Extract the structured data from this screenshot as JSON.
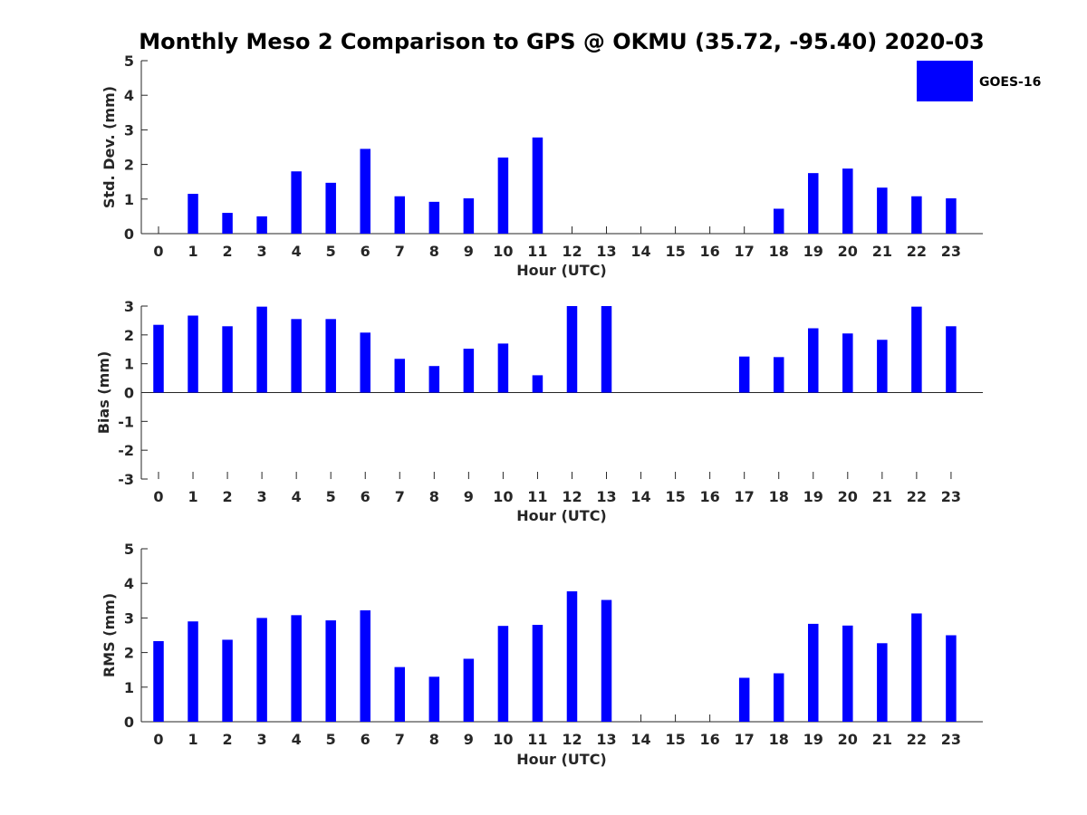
{
  "title": "Monthly Meso 2 Comparison to GPS @ OKMU (35.72, -95.40) 2020-03",
  "colors": {
    "bar": "#0000ff"
  },
  "chart_data": [
    {
      "type": "bar",
      "categories": [
        "0",
        "1",
        "2",
        "3",
        "4",
        "5",
        "6",
        "7",
        "8",
        "9",
        "10",
        "11",
        "12",
        "13",
        "14",
        "15",
        "16",
        "17",
        "18",
        "19",
        "20",
        "21",
        "22",
        "23"
      ],
      "series": [
        {
          "name": "GOES-16",
          "values": [
            0,
            1.15,
            0.6,
            0.5,
            1.8,
            1.47,
            2.45,
            1.08,
            0.92,
            1.02,
            2.2,
            2.78,
            0,
            0,
            0,
            0,
            0,
            0,
            0.72,
            1.75,
            1.88,
            1.33,
            1.08,
            1.02
          ]
        }
      ],
      "xlabel": "Hour (UTC)",
      "ylabel": "Std. Dev. (mm)",
      "ylim": [
        0,
        5
      ],
      "yticks": [
        "0",
        "1",
        "2",
        "3",
        "4",
        "5"
      ],
      "grid": false,
      "legend": {
        "entries": [
          "GOES-16"
        ],
        "placement": "top-right"
      }
    },
    {
      "type": "bar",
      "categories": [
        "0",
        "1",
        "2",
        "3",
        "4",
        "5",
        "6",
        "7",
        "8",
        "9",
        "10",
        "11",
        "12",
        "13",
        "14",
        "15",
        "16",
        "17",
        "18",
        "19",
        "20",
        "21",
        "22",
        "23"
      ],
      "series": [
        {
          "name": "GOES-16",
          "values": [
            2.35,
            2.67,
            2.3,
            2.98,
            2.55,
            2.55,
            2.08,
            1.17,
            0.92,
            1.52,
            1.7,
            0.6,
            3.0,
            3.0,
            0,
            0,
            0,
            1.25,
            1.23,
            2.23,
            2.05,
            1.83,
            2.98,
            2.3
          ]
        }
      ],
      "xlabel": "Hour (UTC)",
      "ylabel": "Bias (mm)",
      "ylim": [
        -3,
        3
      ],
      "yticks": [
        "-3",
        "-2",
        "-1",
        "0",
        "1",
        "2",
        "3"
      ],
      "grid": false
    },
    {
      "type": "bar",
      "categories": [
        "0",
        "1",
        "2",
        "3",
        "4",
        "5",
        "6",
        "7",
        "8",
        "9",
        "10",
        "11",
        "12",
        "13",
        "14",
        "15",
        "16",
        "17",
        "18",
        "19",
        "20",
        "21",
        "22",
        "23"
      ],
      "series": [
        {
          "name": "GOES-16",
          "values": [
            2.33,
            2.9,
            2.37,
            3.0,
            3.08,
            2.93,
            3.22,
            1.58,
            1.3,
            1.82,
            2.77,
            2.8,
            3.77,
            3.52,
            0,
            0,
            0,
            1.27,
            1.4,
            2.83,
            2.78,
            2.27,
            3.13,
            2.5
          ]
        }
      ],
      "xlabel": "Hour (UTC)",
      "ylabel": "RMS (mm)",
      "ylim": [
        0,
        5
      ],
      "yticks": [
        "0",
        "1",
        "2",
        "3",
        "4",
        "5"
      ],
      "grid": false
    }
  ]
}
